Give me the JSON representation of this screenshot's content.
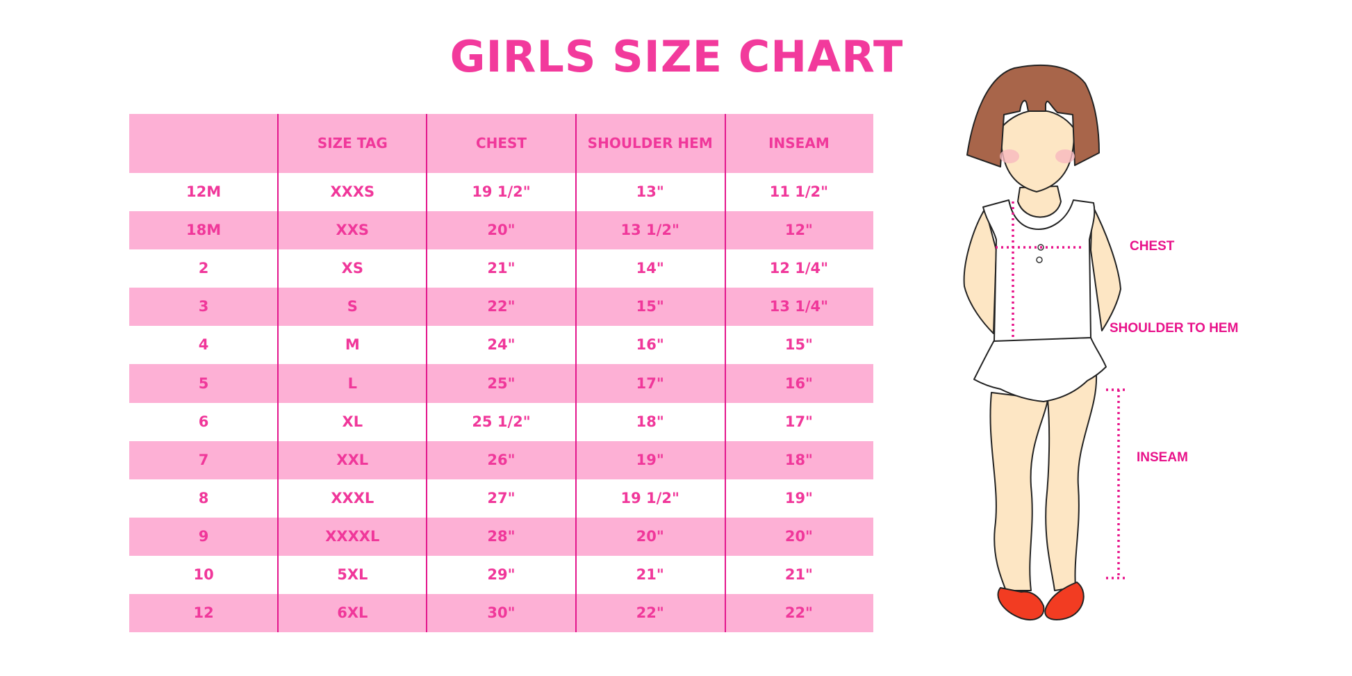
{
  "title": "GIRLS SIZE CHART",
  "table": {
    "headers": [
      "",
      "SIZE TAG",
      "CHEST",
      "SHOULDER HEM",
      "INSEAM"
    ],
    "rows": [
      [
        "12M",
        "XXXS",
        "19 1/2\"",
        "13\"",
        "11 1/2\""
      ],
      [
        "18M",
        "XXS",
        "20\"",
        "13 1/2\"",
        "12\""
      ],
      [
        "2",
        "XS",
        "21\"",
        "14\"",
        "12 1/4\""
      ],
      [
        "3",
        "S",
        "22\"",
        "15\"",
        "13 1/4\""
      ],
      [
        "4",
        "M",
        "24\"",
        "16\"",
        "15\""
      ],
      [
        "5",
        "L",
        "25\"",
        "17\"",
        "16\""
      ],
      [
        "6",
        "XL",
        "25 1/2\"",
        "18\"",
        "17\""
      ],
      [
        "7",
        "XXL",
        "26\"",
        "19\"",
        "18\""
      ],
      [
        "8",
        "XXXL",
        "27\"",
        "19 1/2\"",
        "19\""
      ],
      [
        "9",
        "XXXXL",
        "28\"",
        "20\"",
        "20\""
      ],
      [
        "10",
        "5XL",
        "29\"",
        "21\"",
        "21\""
      ],
      [
        "12",
        "6XL",
        "30\"",
        "22\"",
        "22\""
      ]
    ]
  },
  "diagram": {
    "labels": {
      "chest": "CHEST",
      "shoulder_to_hem": "SHOULDER TO HEM",
      "inseam": "INSEAM"
    }
  },
  "colors": {
    "accent": "#f0379a",
    "row_pink": "#fdb0d5",
    "divider": "#e3168c",
    "hair": "#a8654a",
    "skin": "#fde6c4",
    "shoes": "#f23c22"
  }
}
